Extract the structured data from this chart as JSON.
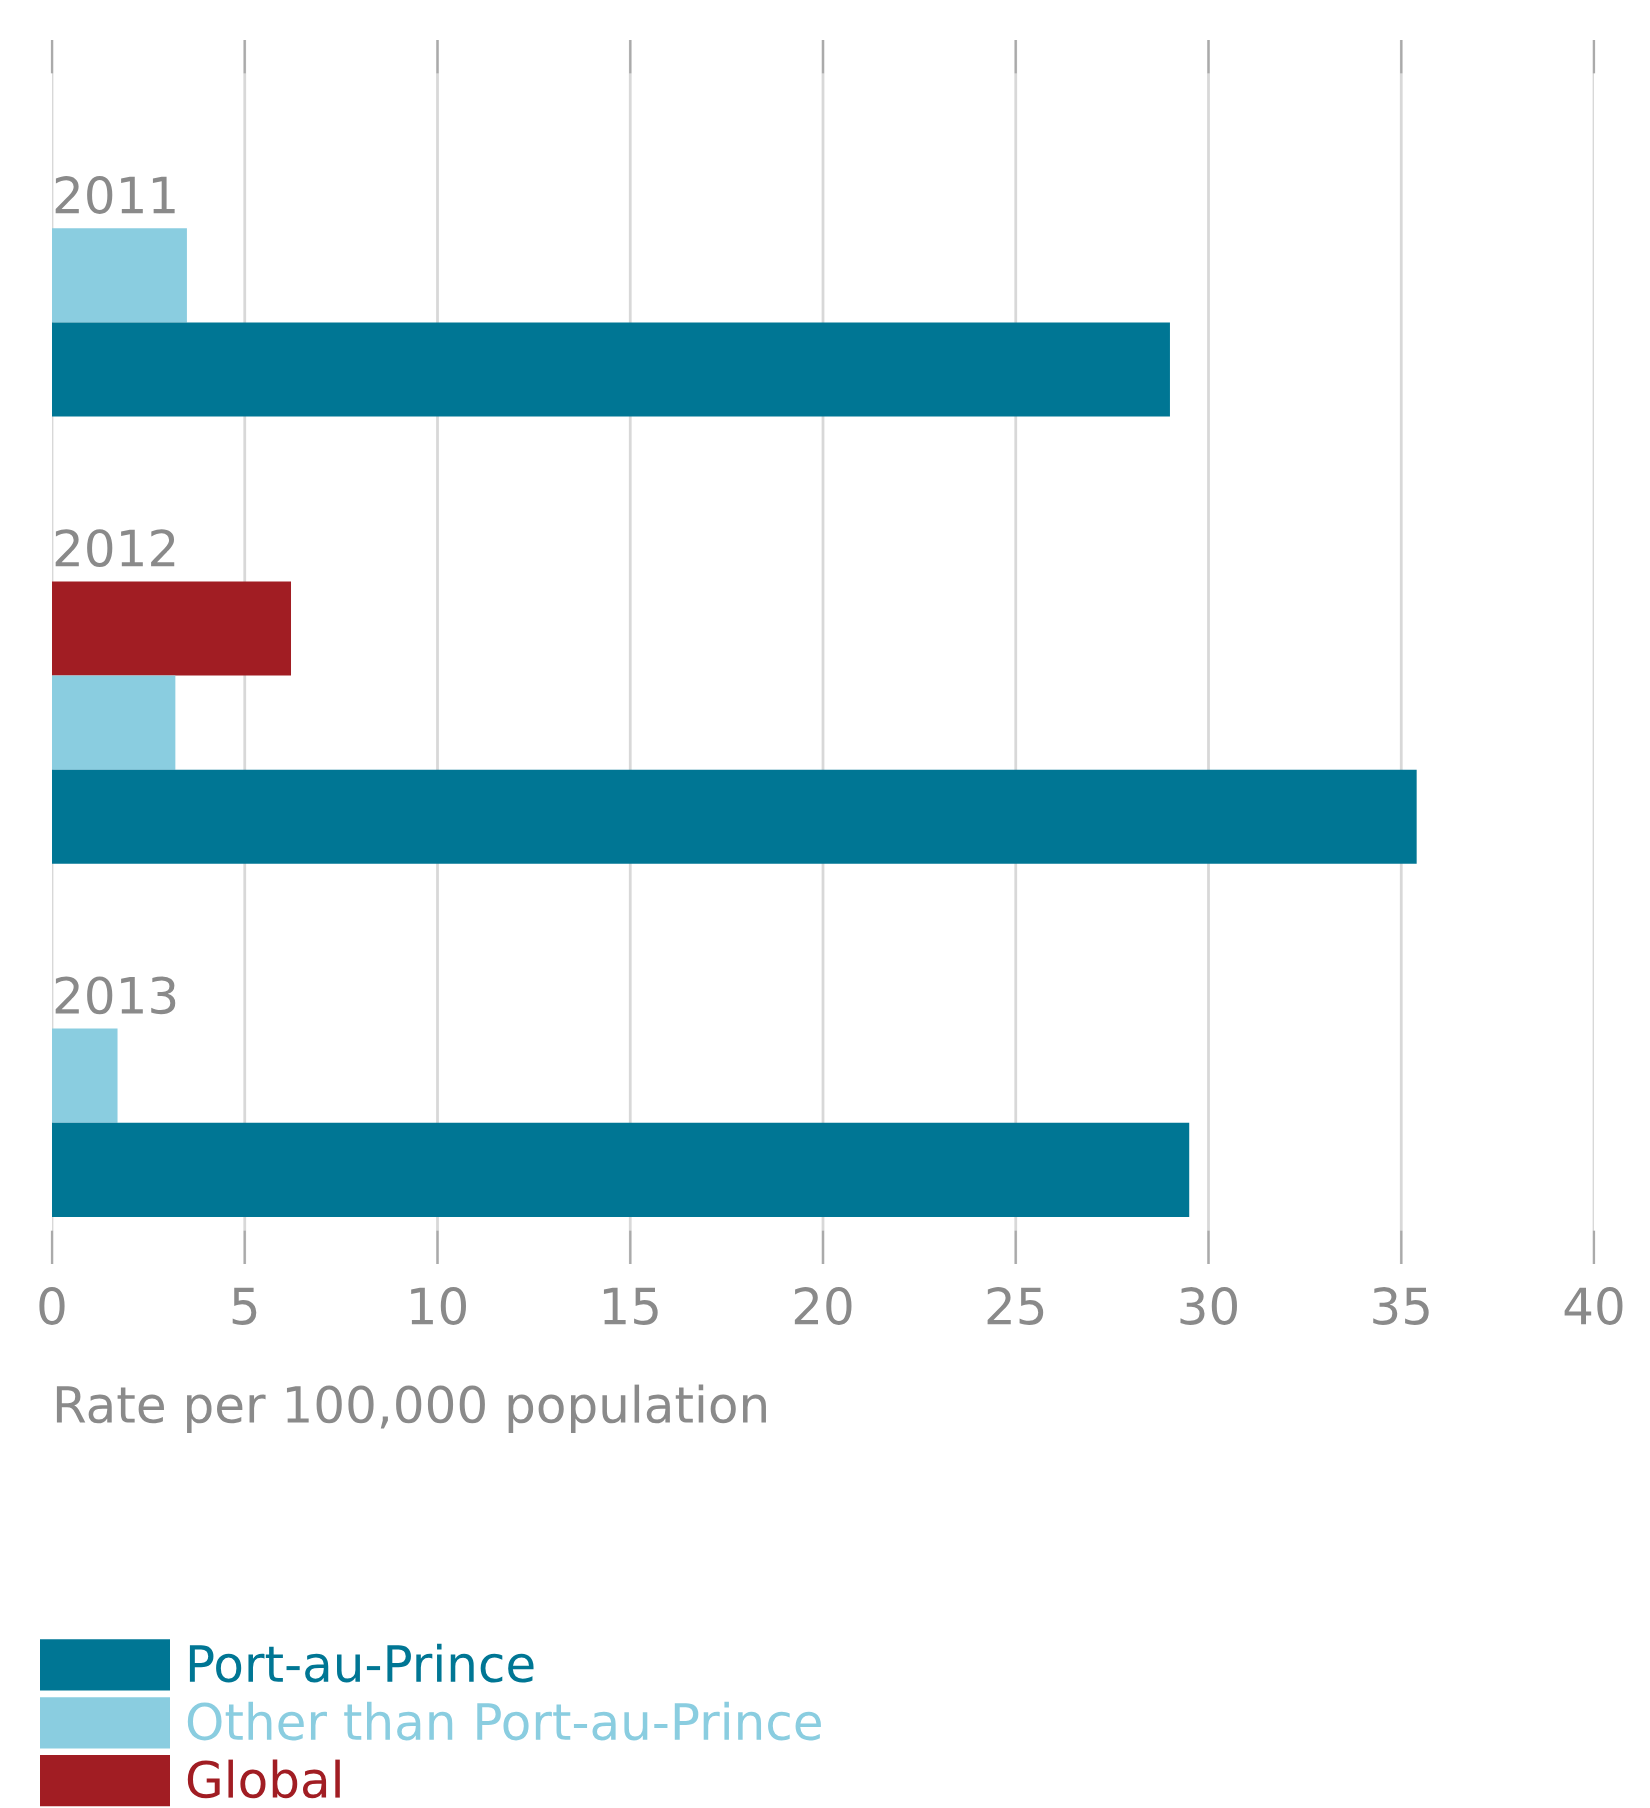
{
  "chart_data": {
    "type": "bar",
    "orientation": "horizontal",
    "xlabel": "Rate per 100,000 population",
    "categories": [
      "2011",
      "2012",
      "2013"
    ],
    "series": [
      {
        "name": "Port-au-Prince",
        "color": "#007694",
        "values": [
          29.0,
          35.4,
          29.5
        ]
      },
      {
        "name": "Other than Port-au-Prince",
        "color": "#8acde0",
        "values": [
          3.5,
          3.2,
          1.7
        ]
      },
      {
        "name": "Global",
        "color": "#a11d23",
        "values": [
          null,
          6.2,
          null
        ]
      }
    ],
    "xlim": [
      0,
      40
    ],
    "xticks": [
      0,
      5,
      10,
      15,
      20,
      25,
      30,
      35,
      40
    ],
    "grid": "x",
    "legend": "bottom"
  }
}
